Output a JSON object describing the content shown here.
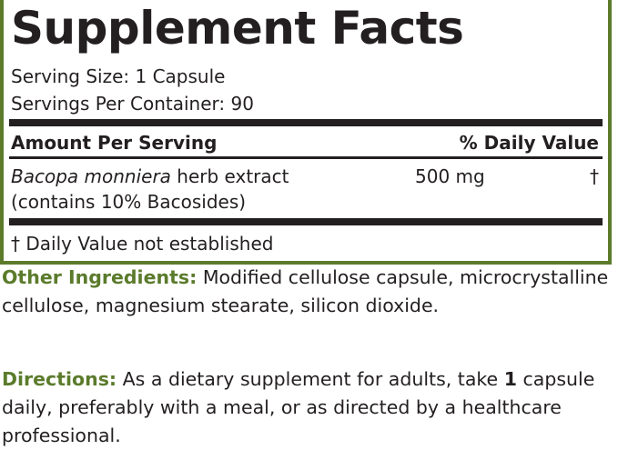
{
  "header": {
    "title": "Supplement Facts",
    "serving_size": "Serving Size: 1 Capsule",
    "servings_per_container": "Servings Per Container: 90"
  },
  "table": {
    "columns": [
      "Amount Per Serving",
      "% Daily Value"
    ],
    "rows": [
      {
        "name_italic": "Bacopa monniera",
        "name_rest": "herb extract",
        "detail": "(contains 10% Bacosides)",
        "amount": "500 mg",
        "daily_value": "†"
      }
    ],
    "footnote": "† Daily Value not established"
  },
  "other_ingredients": {
    "label": "Other Ingredients:",
    "text": "Modified cellulose capsule, microcrystalline cellulose, magnesium stearate, silicon dioxide."
  },
  "directions": {
    "label": "Directions:",
    "text_before": "As a dietary supplement for adults, take",
    "bold": "1",
    "text_after": "capsule daily, preferably with a meal, or as directed by a healthcare professional."
  }
}
